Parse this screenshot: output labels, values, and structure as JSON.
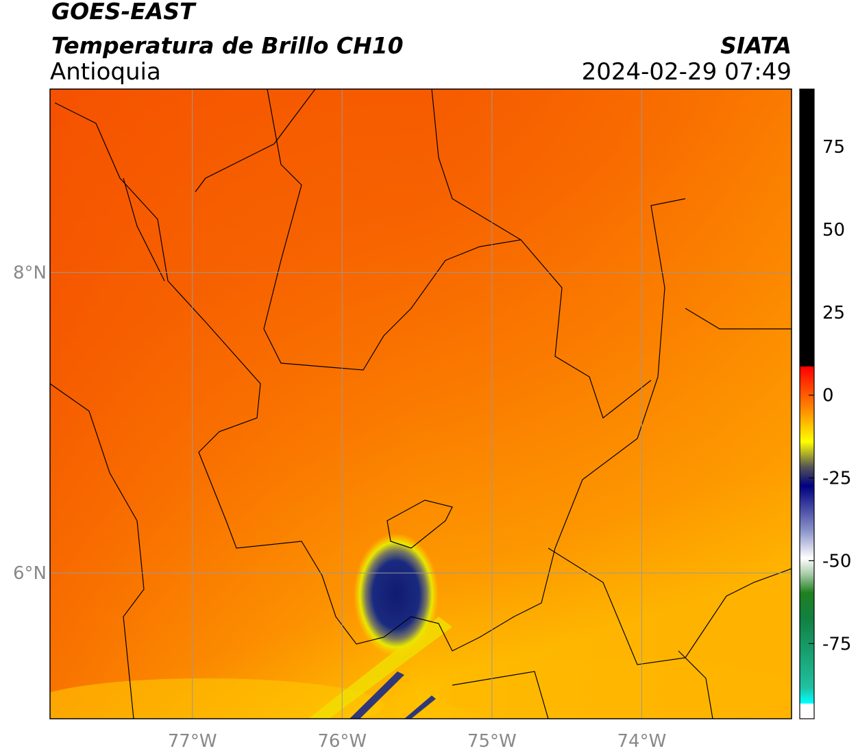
{
  "header": {
    "title": "GOES-EAST",
    "subtitle": "Temperatura de Brillo CH10",
    "region": "Antioquia",
    "source": "SIATA",
    "datetime": "2024-02-29 07:49"
  },
  "map": {
    "xlim": [
      -77.95,
      -73.0
    ],
    "ylim": [
      5.03,
      9.22
    ],
    "xticks": [
      {
        "value": -77,
        "label": "77°W"
      },
      {
        "value": -76,
        "label": "76°W"
      },
      {
        "value": -75,
        "label": "75°W"
      },
      {
        "value": -74,
        "label": "74°W"
      }
    ],
    "yticks": [
      {
        "value": 8,
        "label": "8°N"
      },
      {
        "value": 6,
        "label": "6°N"
      }
    ]
  },
  "colorbar": {
    "lim": [
      -97.7,
      92.4
    ],
    "ticks": [
      75,
      50,
      25,
      0,
      -25,
      -50,
      -75
    ]
  }
}
